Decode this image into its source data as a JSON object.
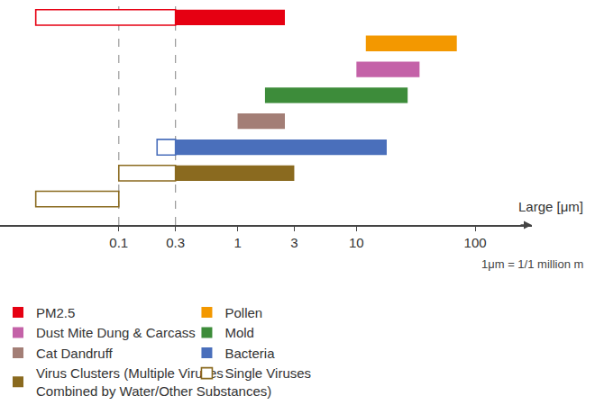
{
  "chart_data": {
    "type": "bar",
    "orientation": "horizontal",
    "log": "x",
    "grid": false,
    "tick_labels": "x",
    "legend": "bottom",
    "xlabel": "Large [μm]",
    "note": "1μm = 1/1 million m",
    "xlim": [
      0.01,
      300
    ],
    "xticks": [
      0.1,
      0.3,
      1,
      3,
      10,
      100
    ],
    "vlines": [
      0.1,
      0.3
    ],
    "categories": [
      null,
      null,
      null,
      null,
      null,
      null,
      null,
      null
    ],
    "series": [
      {
        "name": "PM2.5",
        "color": "#e60012",
        "marker": "filled",
        "values": [
          [
            0.3,
            2.5
          ],
          null,
          null,
          null,
          null,
          null,
          null,
          null
        ]
      },
      {
        "name": "Pollen",
        "color": "#f39800",
        "marker": "filled",
        "values": [
          null,
          [
            12,
            70
          ],
          null,
          null,
          null,
          null,
          null,
          null
        ]
      },
      {
        "name": "Dust Mite Dung & Carcass",
        "color": "#c462a8",
        "marker": "filled",
        "values": [
          null,
          null,
          [
            10,
            34
          ],
          null,
          null,
          null,
          null,
          null
        ]
      },
      {
        "name": "Mold",
        "color": "#3d8c3a",
        "marker": "filled",
        "values": [
          null,
          null,
          null,
          [
            1.7,
            27
          ],
          null,
          null,
          null,
          null
        ]
      },
      {
        "name": "Cat Dandruff",
        "color": "#a37e76",
        "marker": "filled",
        "values": [
          null,
          null,
          null,
          null,
          [
            1,
            2.5
          ],
          null,
          null,
          null
        ]
      },
      {
        "name": "Bacteria",
        "color": "#4a6fbb",
        "marker": "filled",
        "values": [
          null,
          null,
          null,
          null,
          null,
          [
            0.3,
            18
          ],
          null,
          null
        ]
      },
      {
        "name": "Virus Clusters (Multiple Viruses\nCombined by Water/Other Substances)",
        "color": "#8a6a1f",
        "marker": "filled",
        "values": [
          null,
          null,
          null,
          null,
          null,
          null,
          [
            0.3,
            3
          ],
          null
        ]
      },
      {
        "name": "Single Viruses",
        "marker": "hollow",
        "colors": [
          "#e60012",
          null,
          null,
          null,
          null,
          "#4a6fbb",
          "#8a6a1f",
          "#8a6a1f"
        ],
        "values": [
          [
            0.02,
            0.3
          ],
          null,
          null,
          null,
          null,
          [
            0.21,
            0.3
          ],
          [
            0.1,
            0.3
          ],
          [
            0.02,
            0.1
          ]
        ]
      }
    ]
  }
}
